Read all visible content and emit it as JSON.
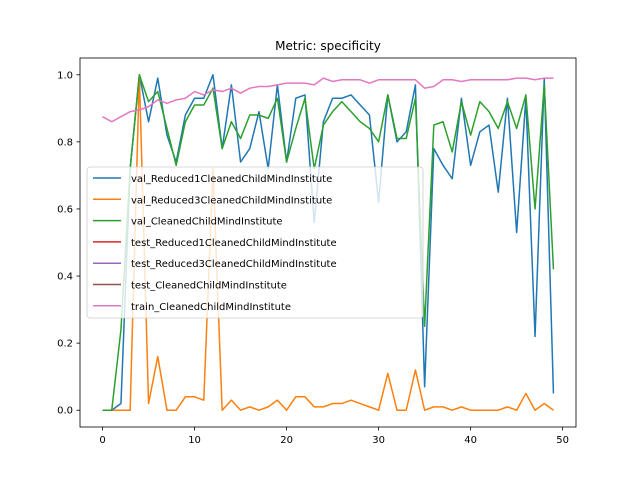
{
  "chart_data": {
    "type": "line",
    "title": "Metric: specificity",
    "xlabel": "",
    "ylabel": "",
    "xlim": [
      -2.45,
      51.45
    ],
    "ylim": [
      -0.05,
      1.05
    ],
    "xticks": [
      0,
      10,
      20,
      30,
      40,
      50
    ],
    "yticks": [
      0.0,
      0.2,
      0.4,
      0.6,
      0.8,
      1.0
    ],
    "xtick_labels": [
      "0",
      "10",
      "20",
      "30",
      "40",
      "50"
    ],
    "ytick_labels": [
      "0.0",
      "0.2",
      "0.4",
      "0.6",
      "0.8",
      "1.0"
    ],
    "grid": false,
    "legend_position": "center-left",
    "series": [
      {
        "name": "val_Reduced1CleanedChildMindInstitute",
        "color": "#1f77b4",
        "values": [
          0.0,
          0.0,
          0.02,
          0.72,
          1.0,
          0.86,
          0.99,
          0.82,
          0.74,
          0.88,
          0.93,
          0.93,
          1.0,
          0.78,
          0.97,
          0.74,
          0.78,
          0.89,
          0.72,
          0.97,
          0.74,
          0.93,
          0.94,
          0.56,
          0.86,
          0.93,
          0.93,
          0.94,
          0.91,
          0.88,
          0.62,
          0.94,
          0.8,
          0.83,
          0.97,
          0.07,
          0.78,
          0.73,
          0.69,
          0.93,
          0.73,
          0.83,
          0.85,
          0.65,
          0.93,
          0.53,
          0.93,
          0.22,
          0.99,
          0.05
        ]
      },
      {
        "name": "val_Reduced3CleanedChildMindInstitute",
        "color": "#ff7f0e",
        "values": [
          0.0,
          0.0,
          0.0,
          0.0,
          1.0,
          0.02,
          0.16,
          0.0,
          0.0,
          0.04,
          0.04,
          0.03,
          0.72,
          0.0,
          0.03,
          0.0,
          0.01,
          0.0,
          0.01,
          0.03,
          0.0,
          0.04,
          0.04,
          0.01,
          0.01,
          0.02,
          0.02,
          0.03,
          0.02,
          0.01,
          0.0,
          0.11,
          0.0,
          0.0,
          0.12,
          0.0,
          0.01,
          0.01,
          0.0,
          0.01,
          0.0,
          0.0,
          0.0,
          0.0,
          0.01,
          0.0,
          0.05,
          0.0,
          0.02,
          0.0
        ]
      },
      {
        "name": "val_CleanedChildMindInstitute",
        "color": "#2ca02c",
        "values": [
          0.0,
          0.0,
          0.24,
          0.72,
          1.0,
          0.92,
          0.95,
          0.84,
          0.73,
          0.86,
          0.91,
          0.91,
          0.96,
          0.78,
          0.86,
          0.81,
          0.88,
          0.88,
          0.87,
          0.93,
          0.74,
          0.84,
          0.93,
          0.72,
          0.85,
          0.89,
          0.92,
          0.89,
          0.86,
          0.84,
          0.8,
          0.94,
          0.81,
          0.81,
          0.93,
          0.25,
          0.85,
          0.86,
          0.77,
          0.92,
          0.82,
          0.92,
          0.89,
          0.84,
          0.92,
          0.84,
          0.94,
          0.6,
          0.97,
          0.42
        ]
      },
      {
        "name": "test_Reduced1CleanedChildMindInstitute",
        "color": "#d62728",
        "values": []
      },
      {
        "name": "test_Reduced3CleanedChildMindInstitute",
        "color": "#9467bd",
        "values": []
      },
      {
        "name": "test_CleanedChildMindInstitute",
        "color": "#8c564b",
        "values": []
      },
      {
        "name": "train_CleanedChildMindInstitute",
        "color": "#e377c2",
        "values": [
          0.875,
          0.86,
          0.875,
          0.89,
          0.895,
          0.905,
          0.925,
          0.915,
          0.925,
          0.93,
          0.95,
          0.94,
          0.955,
          0.95,
          0.96,
          0.945,
          0.96,
          0.965,
          0.965,
          0.97,
          0.975,
          0.975,
          0.975,
          0.97,
          0.99,
          0.98,
          0.985,
          0.985,
          0.985,
          0.975,
          0.985,
          0.985,
          0.985,
          0.985,
          0.985,
          0.96,
          0.965,
          0.985,
          0.985,
          0.98,
          0.985,
          0.985,
          0.985,
          0.985,
          0.985,
          0.99,
          0.99,
          0.985,
          0.99,
          0.99
        ]
      }
    ]
  }
}
